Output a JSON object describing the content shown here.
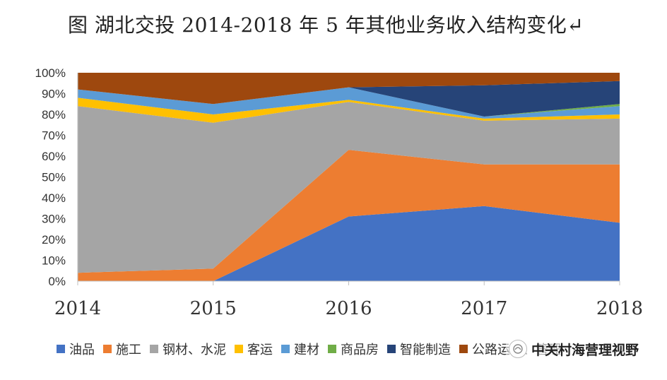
{
  "title": "图  湖北交投 2014-2018 年 5 年其他业务收入结构变化↵",
  "watermark": {
    "text": "中关村海营理视野",
    "icon": "wechat-channel-icon"
  },
  "chart_data": {
    "type": "area",
    "stacked": true,
    "percent": true,
    "x": [
      "2014",
      "2015",
      "2016",
      "2017",
      "2018"
    ],
    "ylim": [
      0,
      100
    ],
    "yticks": [
      "0%",
      "10%",
      "20%",
      "30%",
      "40%",
      "50%",
      "60%",
      "70%",
      "80%",
      "90%",
      "100%"
    ],
    "grid": false,
    "legend_position": "bottom",
    "series": [
      {
        "name": "油品",
        "color": "#4472C4",
        "values": [
          0,
          0,
          31,
          36,
          28
        ]
      },
      {
        "name": "施工",
        "color": "#ED7D31",
        "values": [
          4,
          6,
          32,
          20,
          28
        ]
      },
      {
        "name": "钢材、水泥",
        "color": "#A5A5A5",
        "values": [
          80,
          70,
          23,
          21,
          22
        ]
      },
      {
        "name": "客运",
        "color": "#FFC000",
        "values": [
          4,
          4,
          1,
          1,
          2
        ]
      },
      {
        "name": "建材",
        "color": "#5B9BD5",
        "values": [
          4,
          5,
          6,
          1,
          4
        ]
      },
      {
        "name": "商品房",
        "color": "#70AD47",
        "values": [
          0,
          0,
          0,
          0,
          1
        ]
      },
      {
        "name": "智能制造",
        "color": "#264478",
        "values": [
          0,
          0,
          0,
          15,
          11
        ]
      },
      {
        "name": "公路运营、管理",
        "color": "#9E480E",
        "values": [
          8,
          15,
          7,
          6,
          4
        ]
      }
    ]
  }
}
